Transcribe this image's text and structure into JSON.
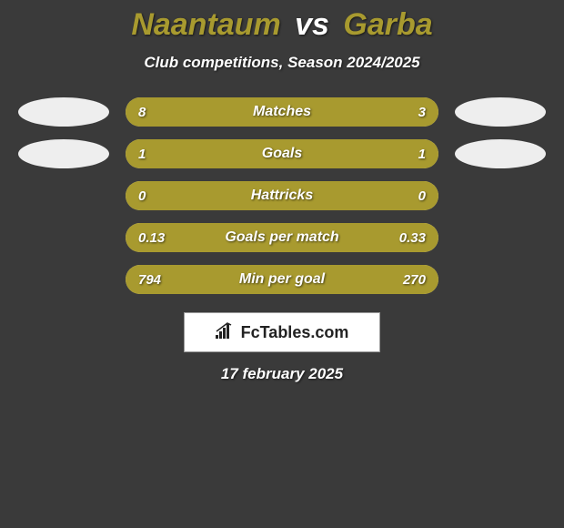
{
  "title": {
    "player1": "Naantaum",
    "vs": "vs",
    "player2": "Garba",
    "color_p1": "#a89a2f",
    "color_vs": "#ffffff",
    "color_p2": "#a89a2f"
  },
  "subtitle": "Club competitions, Season 2024/2025",
  "colors": {
    "left": "#a89a2f",
    "right": "#a89a2f",
    "bar_bg": "#e8e1a9",
    "text": "#ffffff",
    "oval": "#eeeeee",
    "background": "#3a3a3a"
  },
  "rows": [
    {
      "label": "Matches",
      "left_val": "8",
      "right_val": "3",
      "left_pct": 70,
      "right_pct": 30,
      "show_ovals": true
    },
    {
      "label": "Goals",
      "left_val": "1",
      "right_val": "1",
      "left_pct": 50,
      "right_pct": 50,
      "show_ovals": true
    },
    {
      "label": "Hattricks",
      "left_val": "0",
      "right_val": "0",
      "left_pct": 100,
      "right_pct": 0,
      "show_ovals": false
    },
    {
      "label": "Goals per match",
      "left_val": "0.13",
      "right_val": "0.33",
      "left_pct": 28,
      "right_pct": 72,
      "show_ovals": false
    },
    {
      "label": "Min per goal",
      "left_val": "794",
      "right_val": "270",
      "left_pct": 75,
      "right_pct": 25,
      "show_ovals": false
    }
  ],
  "brand": "FcTables.com",
  "date": "17 february 2025"
}
